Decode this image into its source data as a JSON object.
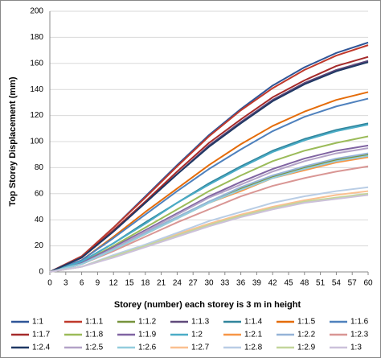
{
  "chart_data": {
    "type": "line",
    "x_label": "Storey (number) each storey is 3 m in height",
    "y_label": "Top Storey Displacement (mm)",
    "x": [
      0,
      6,
      12,
      18,
      24,
      30,
      36,
      42,
      48,
      54,
      60
    ],
    "xlim": [
      0,
      60
    ],
    "xticks": [
      0,
      3,
      6,
      9,
      12,
      15,
      18,
      21,
      24,
      27,
      30,
      33,
      36,
      39,
      42,
      45,
      48,
      51,
      54,
      57,
      60
    ],
    "ylim": [
      0,
      200
    ],
    "yticks": [
      0,
      20,
      40,
      60,
      80,
      100,
      120,
      140,
      160,
      180,
      200
    ],
    "grid": true,
    "legend": "bottom",
    "series": [
      {
        "name": "1:1",
        "color": "#2f5597",
        "values": [
          0,
          12,
          34,
          58,
          82,
          105,
          125,
          143,
          157,
          168,
          176
        ]
      },
      {
        "name": "1:1.1",
        "color": "#c0392b",
        "values": [
          0,
          12,
          34,
          57,
          81,
          104,
          124,
          141,
          155,
          166,
          174
        ]
      },
      {
        "name": "1:1.2",
        "color": "#77933c",
        "values": [
          0,
          6,
          17,
          30,
          42,
          54,
          64,
          73,
          80,
          86,
          90
        ]
      },
      {
        "name": "1:1.3",
        "color": "#604a7b",
        "values": [
          0,
          11,
          31,
          53,
          75,
          97,
          115,
          132,
          145,
          155,
          162
        ]
      },
      {
        "name": "1:1.4",
        "color": "#31859c",
        "values": [
          0,
          8,
          22,
          38,
          53,
          68,
          81,
          93,
          102,
          109,
          114
        ]
      },
      {
        "name": "1:1.5",
        "color": "#e46c0a",
        "values": [
          0,
          9,
          27,
          46,
          64,
          82,
          98,
          112,
          123,
          132,
          138
        ]
      },
      {
        "name": "1:1.6",
        "color": "#4f81bd",
        "values": [
          0,
          9,
          26,
          44,
          62,
          79,
          94,
          108,
          119,
          127,
          133
        ]
      },
      {
        "name": "1:1.7",
        "color": "#a52a2a",
        "values": [
          0,
          11,
          32,
          54,
          77,
          99,
          117,
          134,
          147,
          158,
          165
        ]
      },
      {
        "name": "1:1.8",
        "color": "#9bbb59",
        "values": [
          0,
          7,
          20,
          34,
          48,
          62,
          74,
          85,
          93,
          99,
          104
        ]
      },
      {
        "name": "1:1.9",
        "color": "#8064a2",
        "values": [
          0,
          7,
          19,
          32,
          45,
          58,
          69,
          79,
          87,
          93,
          97
        ]
      },
      {
        "name": "1:2",
        "color": "#4bacc6",
        "values": [
          0,
          8,
          22,
          37,
          53,
          67,
          80,
          92,
          101,
          108,
          113
        ]
      },
      {
        "name": "1:2.1",
        "color": "#f79646",
        "values": [
          0,
          6,
          17,
          29,
          41,
          53,
          62,
          72,
          78,
          84,
          88
        ]
      },
      {
        "name": "1:2.2",
        "color": "#95b3d7",
        "values": [
          0,
          6,
          18,
          30,
          42,
          54,
          65,
          74,
          81,
          87,
          91
        ]
      },
      {
        "name": "1:2.3",
        "color": "#d99694",
        "values": [
          0,
          6,
          16,
          27,
          38,
          48,
          58,
          66,
          72,
          77,
          81
        ]
      },
      {
        "name": "1:2.4",
        "color": "#1f3864",
        "values": [
          0,
          11,
          31,
          53,
          75,
          96,
          114,
          131,
          144,
          154,
          161
        ]
      },
      {
        "name": "1:2.5",
        "color": "#b3a2c7",
        "values": [
          0,
          6,
          18,
          31,
          44,
          57,
          67,
          77,
          85,
          91,
          95
        ]
      },
      {
        "name": "1:2.6",
        "color": "#93cddd",
        "values": [
          0,
          6,
          17,
          29,
          41,
          53,
          63,
          72,
          79,
          85,
          89
        ]
      },
      {
        "name": "1:2.7",
        "color": "#fac090",
        "values": [
          0,
          4,
          12,
          20,
          29,
          37,
          44,
          50,
          55,
          59,
          62
        ]
      },
      {
        "name": "1:2.8",
        "color": "#b9cde5",
        "values": [
          0,
          4,
          13,
          21,
          30,
          39,
          46,
          53,
          58,
          62,
          65
        ]
      },
      {
        "name": "1:2.9",
        "color": "#c3d69b",
        "values": [
          0,
          4,
          12,
          20,
          28,
          36,
          43,
          49,
          54,
          57,
          60
        ]
      },
      {
        "name": "1:3",
        "color": "#ccc1da",
        "values": [
          0,
          4,
          11,
          19,
          27,
          35,
          42,
          48,
          53,
          56,
          59
        ]
      }
    ]
  }
}
